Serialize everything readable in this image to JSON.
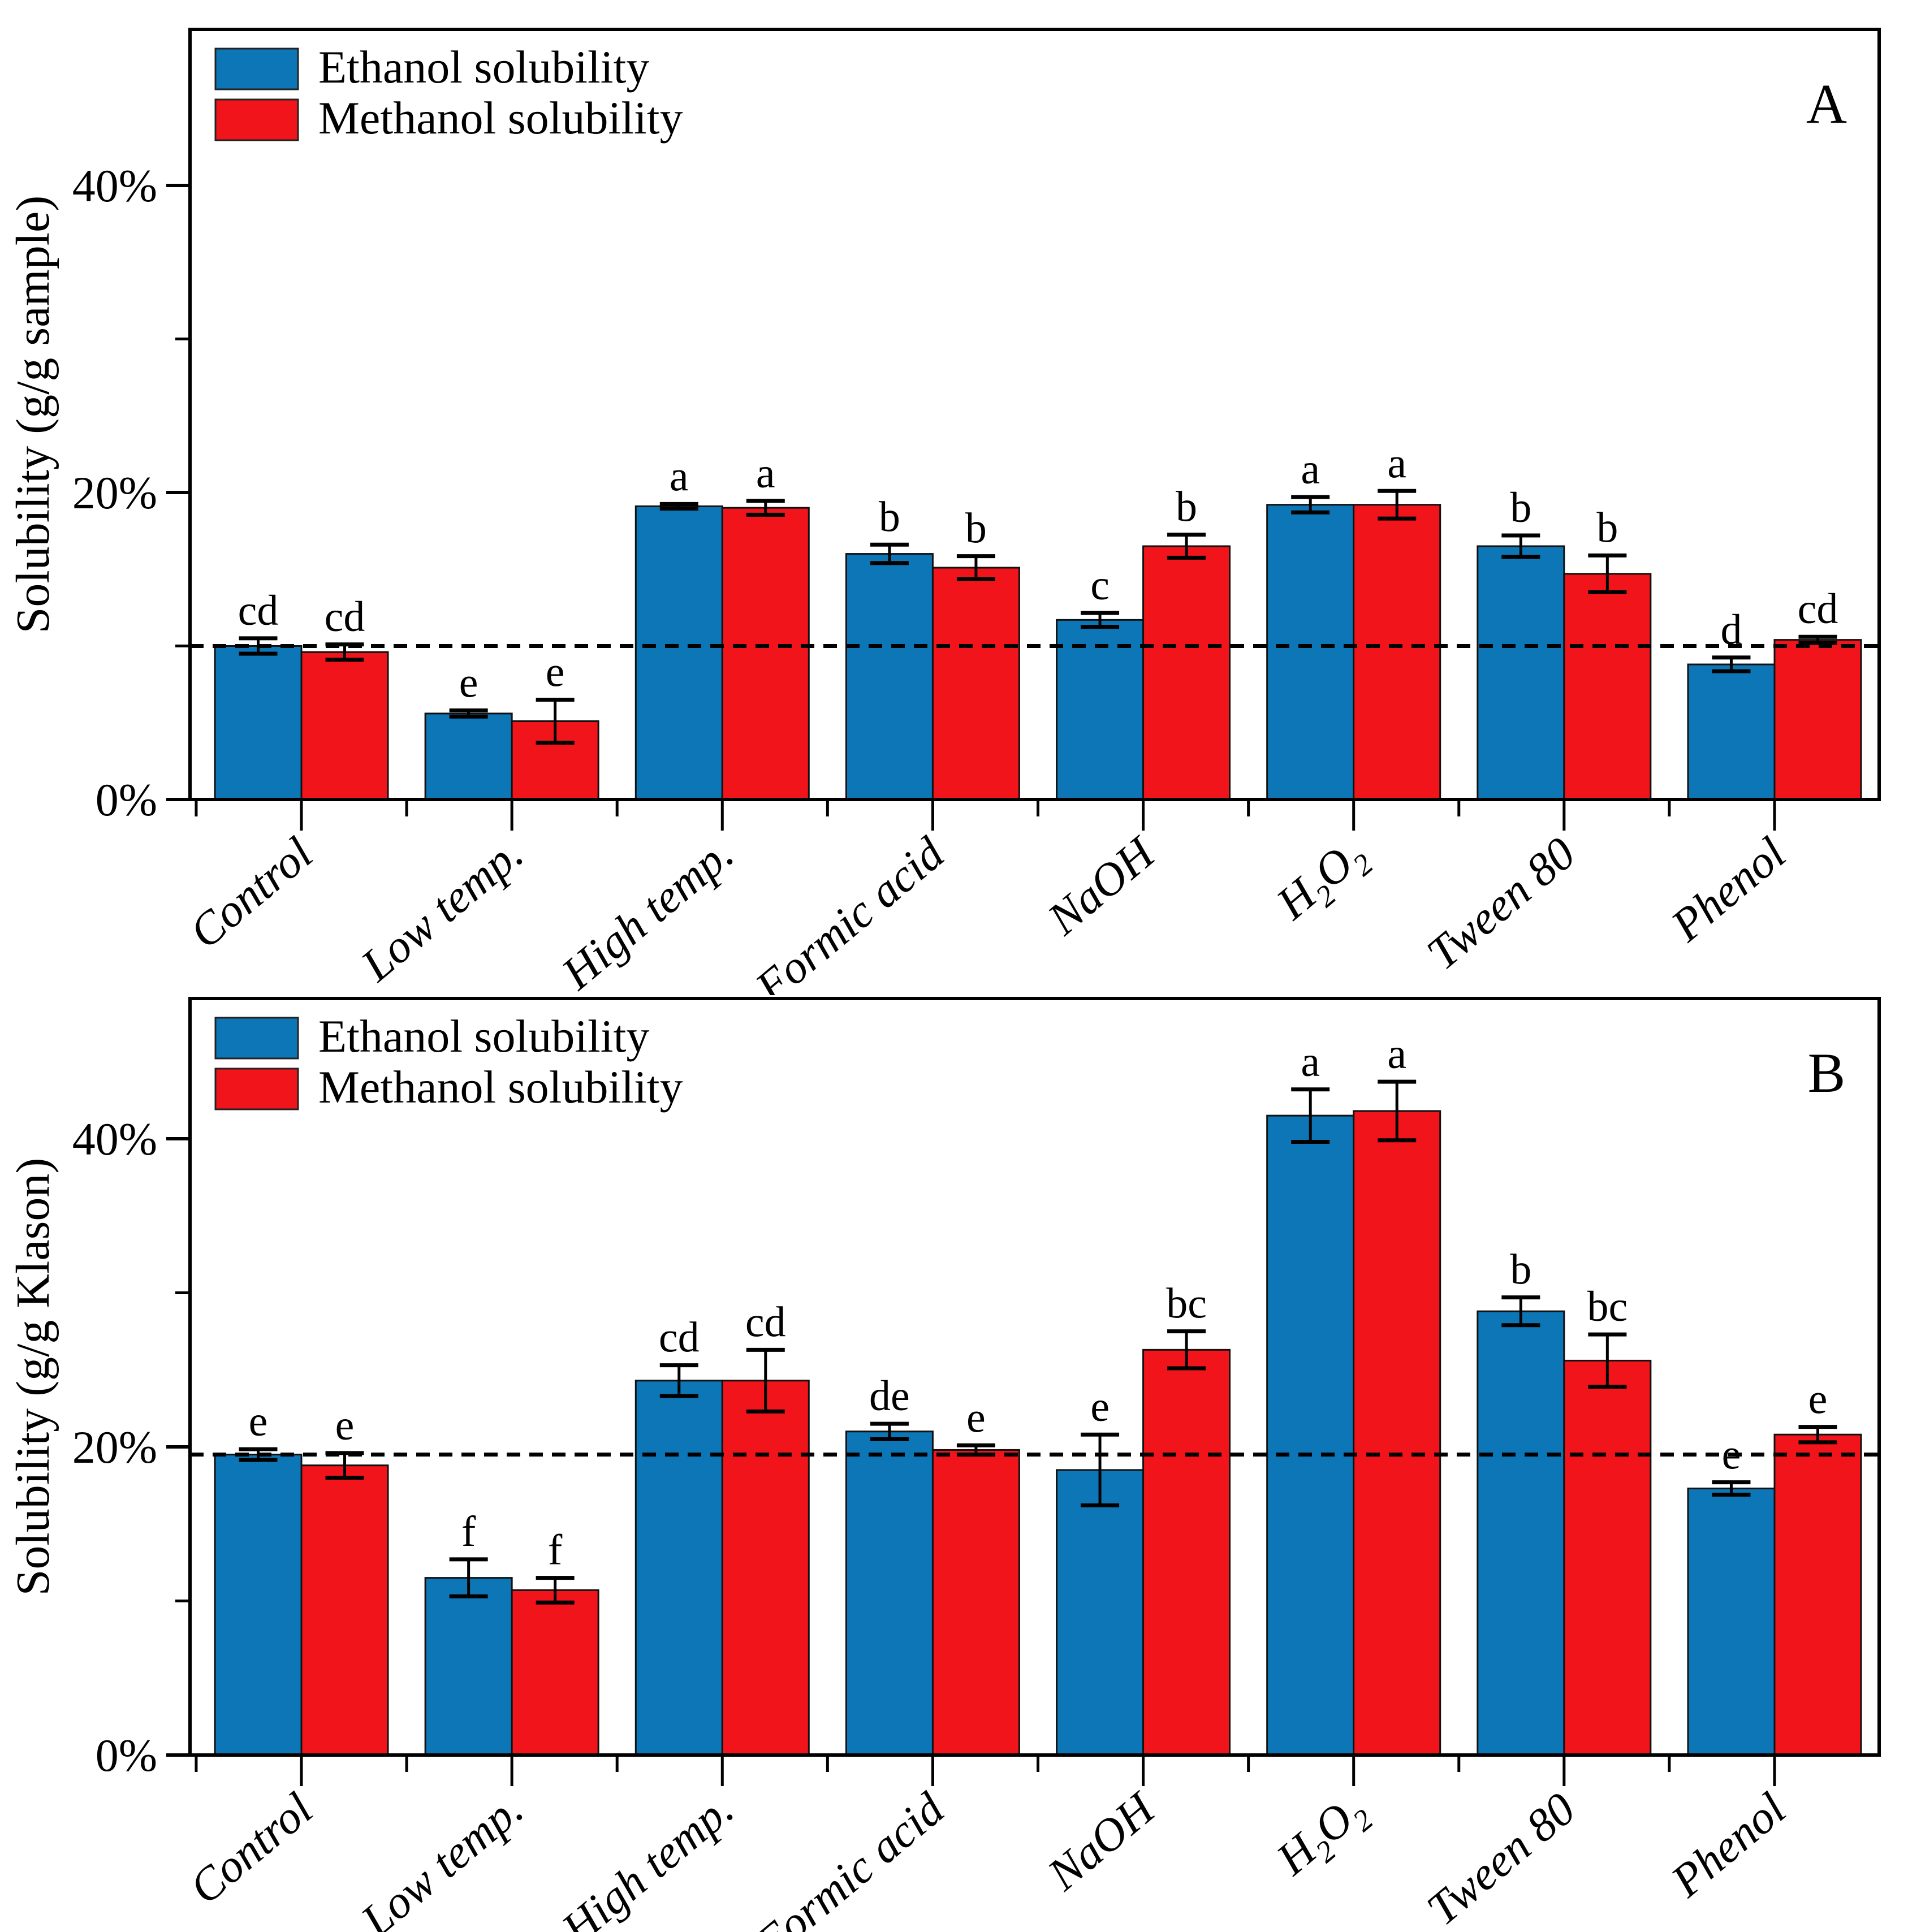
{
  "figure": {
    "background": "#ffffff",
    "accent_blue": "#0d76b6",
    "accent_red": "#f2141b",
    "axis_color": "#000000"
  },
  "chart_data": [
    {
      "type": "bar",
      "panel_label": "A",
      "ylabel": "Solubility (g/g sample)",
      "xlabel": "",
      "grid": false,
      "legend_position": "top-left",
      "ylim": [
        0,
        50
      ],
      "yticks_major": [
        {
          "v": 0,
          "label": "0%"
        },
        {
          "v": 20,
          "label": "20%"
        },
        {
          "v": 40,
          "label": "40%"
        }
      ],
      "yticks_minor": [
        10,
        30
      ],
      "dashed_line": 10.0,
      "categories": [
        "Control",
        "Low temp.",
        "High temp.",
        "Formic acid",
        "NaOH",
        "H_2O_2",
        "Tween 80",
        "Phenol"
      ],
      "series": [
        {
          "name": "Ethanol solubility",
          "color": "#0d76b6",
          "values": [
            10.0,
            5.6,
            19.1,
            16.0,
            11.7,
            19.2,
            16.5,
            8.8
          ],
          "errors": [
            0.5,
            0.2,
            0.15,
            0.6,
            0.45,
            0.5,
            0.7,
            0.45
          ],
          "letters": [
            "cd",
            "e",
            "a",
            "b",
            "c",
            "a",
            "b",
            "d"
          ]
        },
        {
          "name": "Methanol solubility",
          "color": "#f2141b",
          "values": [
            9.6,
            5.1,
            19.0,
            15.1,
            16.5,
            19.2,
            14.7,
            10.4
          ],
          "errors": [
            0.5,
            1.4,
            0.45,
            0.75,
            0.75,
            0.9,
            1.2,
            0.2
          ],
          "letters": [
            "cd",
            "e",
            "a",
            "b",
            "b",
            "a",
            "b",
            "cd"
          ]
        }
      ]
    },
    {
      "type": "bar",
      "panel_label": "B",
      "ylabel": "Solubility (g/g Klason)",
      "xlabel": "",
      "grid": false,
      "legend_position": "top-left",
      "ylim": [
        0,
        49
      ],
      "yticks_major": [
        {
          "v": 0,
          "label": "0%"
        },
        {
          "v": 20,
          "label": "20%"
        },
        {
          "v": 40,
          "label": "40%"
        }
      ],
      "yticks_minor": [
        10,
        30
      ],
      "dashed_line": 19.5,
      "categories": [
        "Control",
        "Low temp.",
        "High temp.",
        "Formic acid",
        "NaOH",
        "H_2O_2",
        "Tween 80",
        "Phenol"
      ],
      "series": [
        {
          "name": "Ethanol solubility",
          "color": "#0d76b6",
          "values": [
            19.5,
            11.5,
            24.3,
            21.0,
            18.5,
            41.5,
            28.8,
            17.3
          ],
          "errors": [
            0.35,
            1.2,
            1.0,
            0.5,
            2.3,
            1.7,
            0.9,
            0.4
          ],
          "letters": [
            "e",
            "f",
            "cd",
            "de",
            "e",
            "a",
            "b",
            "e"
          ]
        },
        {
          "name": "Methanol solubility",
          "color": "#f2141b",
          "values": [
            18.8,
            10.7,
            24.3,
            19.8,
            26.3,
            41.8,
            25.6,
            20.8
          ],
          "errors": [
            0.8,
            0.8,
            2.0,
            0.3,
            1.2,
            1.9,
            1.7,
            0.5
          ],
          "letters": [
            "e",
            "f",
            "cd",
            "e",
            "bc",
            "a",
            "bc",
            "e"
          ]
        }
      ]
    }
  ]
}
